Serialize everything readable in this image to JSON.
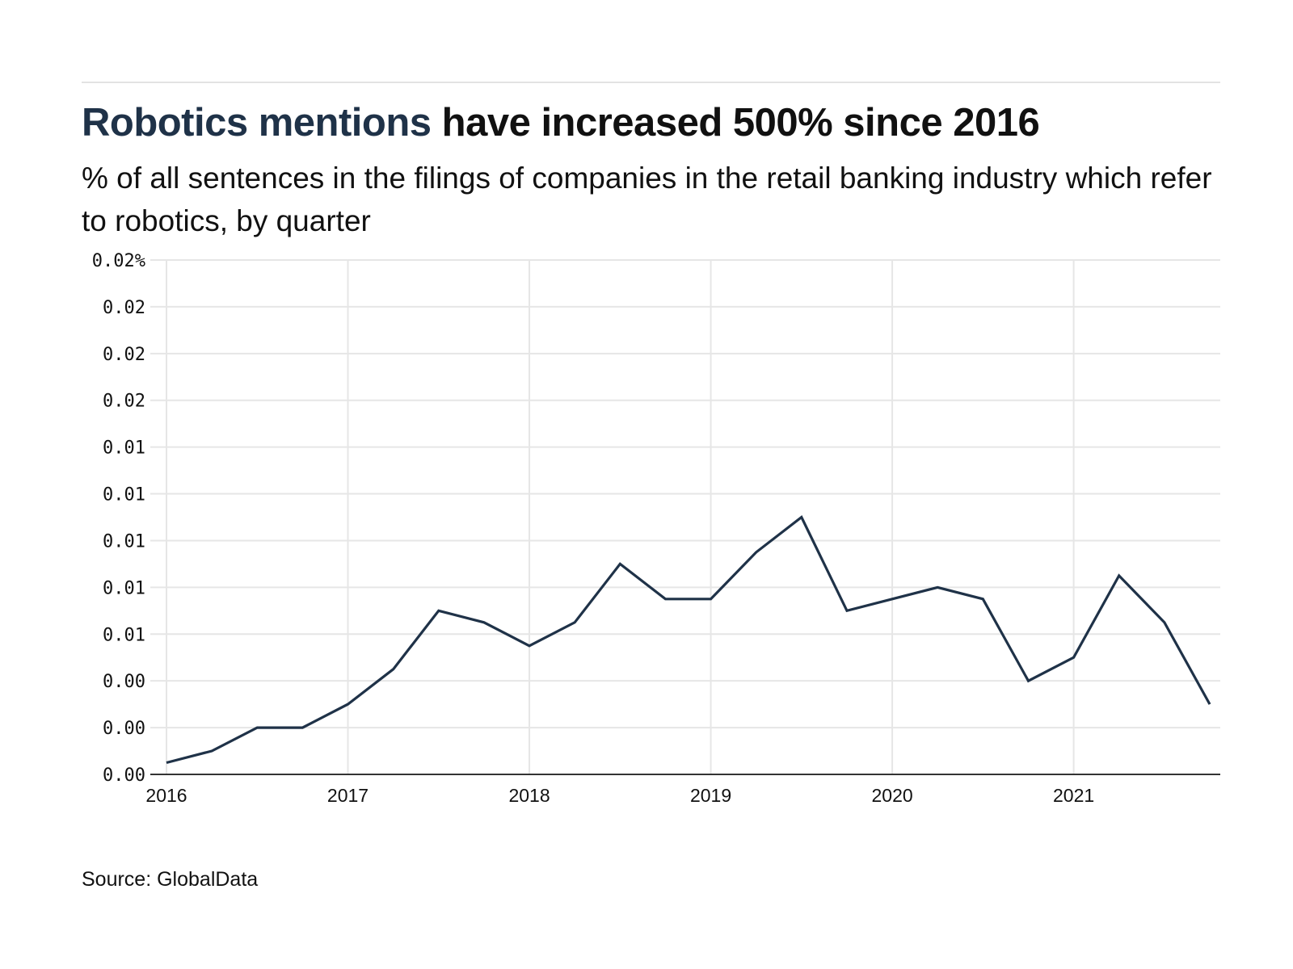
{
  "header": {
    "title_highlight": "Robotics mentions",
    "title_rest": " have increased 500% since 2016",
    "subtitle": "% of all sentences in the filings of companies in the retail banking industry which refer to robotics, by quarter"
  },
  "footer": {
    "source": "Source: GlobalData"
  },
  "colors": {
    "line": "#1f3248",
    "highlight": "#1f3248",
    "grid": "#e6e6e6",
    "axis": "#333333"
  },
  "chart_data": {
    "type": "line",
    "title": "Robotics mentions have increased 500% since 2016",
    "subtitle": "% of all sentences in the filings of companies in the retail banking industry which refer to robotics, by quarter",
    "xlabel": "",
    "ylabel": "",
    "grid": true,
    "legend": "none",
    "ylim": [
      0,
      0.022
    ],
    "xlim": [
      2016,
      2021.75
    ],
    "yticks": [
      0,
      0.002,
      0.004,
      0.006,
      0.008,
      0.01,
      0.012,
      0.014,
      0.016,
      0.018,
      0.02,
      0.022
    ],
    "ytick_labels": [
      "0.00",
      "0.00",
      "0.00",
      "0.01",
      "0.01",
      "0.01",
      "0.01",
      "0.01",
      "0.02",
      "0.02",
      "0.02",
      "0.02%"
    ],
    "xticks": [
      2016,
      2017,
      2018,
      2019,
      2020,
      2021
    ],
    "xtick_labels": [
      "2016",
      "2017",
      "2018",
      "2019",
      "2020",
      "2021"
    ],
    "series": [
      {
        "name": "Robotics mentions",
        "x": [
          2016,
          2016.25,
          2016.5,
          2016.75,
          2017,
          2017.25,
          2017.5,
          2017.75,
          2018,
          2018.25,
          2018.5,
          2018.75,
          2019,
          2019.25,
          2019.5,
          2019.75,
          2020,
          2020.25,
          2020.5,
          2020.75,
          2021,
          2021.25,
          2021.5,
          2021.75
        ],
        "values": [
          0.0005,
          0.001,
          0.002,
          0.002,
          0.003,
          0.0045,
          0.007,
          0.0065,
          0.0055,
          0.0065,
          0.009,
          0.0075,
          0.0075,
          0.0095,
          0.011,
          0.007,
          0.0075,
          0.008,
          0.0075,
          0.004,
          0.005,
          0.0085,
          0.0065,
          0.003
        ]
      }
    ]
  }
}
